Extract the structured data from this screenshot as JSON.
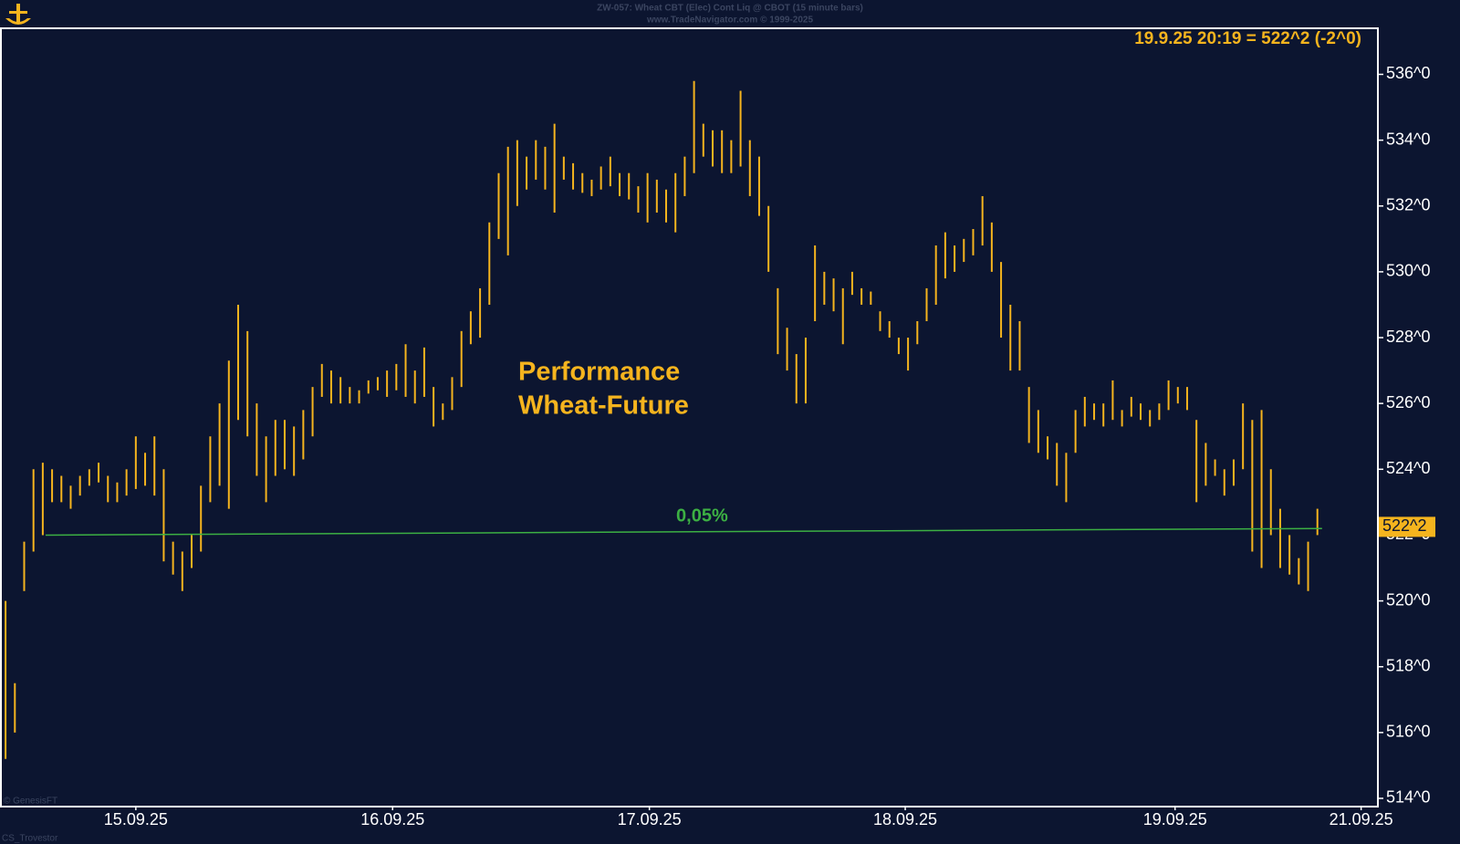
{
  "chart_data": {
    "type": "range-bar",
    "title": "ZW-057: Wheat CBT (Elec) Cont Liq @ CBOT (15 minute bars)",
    "subtitle": "www.TradeNavigator.com © 1999-2025",
    "info": "19.9.25 20:19 = 522^2 (-2^0)",
    "annotation": [
      "Performance",
      "Wheat-Future"
    ],
    "watermark": "© GenesisFT",
    "footer": "CS_Trovestor",
    "color": "#f5b41e",
    "high": [
      520.0,
      517.5,
      521.8,
      524.0,
      524.2,
      524.0,
      523.8,
      523.5,
      523.8,
      524.0,
      524.2,
      523.8,
      523.6,
      524.0,
      525.0,
      524.5,
      525.0,
      524.0,
      521.8,
      521.5,
      522.0,
      523.5,
      525.0,
      526.0,
      527.3,
      529.0,
      528.2,
      526.0,
      525.0,
      525.5,
      525.5,
      525.3,
      525.8,
      526.5,
      527.2,
      527.0,
      526.8,
      526.5,
      526.4,
      526.7,
      526.8,
      527.0,
      527.2,
      527.8,
      527.0,
      527.7,
      526.5,
      526.0,
      526.8,
      528.2,
      528.8,
      529.5,
      531.5,
      533.0,
      533.8,
      534.0,
      533.5,
      534.0,
      533.8,
      534.5,
      533.5,
      533.3,
      533.0,
      532.8,
      533.2,
      533.5,
      533.0,
      533.0,
      532.6,
      533.0,
      532.8,
      532.5,
      533.0,
      533.5,
      535.8,
      534.5,
      534.3,
      534.3,
      534.0,
      535.5,
      534.0,
      533.5,
      532.0,
      529.5,
      528.3,
      527.5,
      528.0,
      530.8,
      530.0,
      529.8,
      529.5,
      530.0,
      529.5,
      529.4,
      528.8,
      528.5,
      528.0,
      528.0,
      528.5,
      529.5,
      530.8,
      531.2,
      530.8,
      531.0,
      531.3,
      532.3,
      531.5,
      530.3,
      529.0,
      528.5,
      526.5,
      525.8,
      525.0,
      524.8,
      524.5,
      525.8,
      526.2,
      526.0,
      526.0,
      526.7,
      525.8,
      526.2,
      526.0,
      525.8,
      526.0,
      526.7,
      526.5,
      526.5,
      525.5,
      524.8,
      524.3,
      524.0,
      524.3,
      526.0,
      525.5,
      525.8,
      524.0,
      522.8,
      522.0,
      521.3,
      521.8,
      522.8
    ],
    "low": [
      515.2,
      516.0,
      520.3,
      521.5,
      522.0,
      523.0,
      523.0,
      522.8,
      523.2,
      523.5,
      523.6,
      523.0,
      523.0,
      523.2,
      523.4,
      523.5,
      523.2,
      521.2,
      520.8,
      520.3,
      521.0,
      521.5,
      523.0,
      523.5,
      522.8,
      525.5,
      525.0,
      523.8,
      523.0,
      523.8,
      524.0,
      523.8,
      524.3,
      525.0,
      526.2,
      526.0,
      526.0,
      526.0,
      526.0,
      526.3,
      526.4,
      526.2,
      526.4,
      526.2,
      526.0,
      526.2,
      525.3,
      525.5,
      525.8,
      526.5,
      527.8,
      528.0,
      529.0,
      531.0,
      530.5,
      532.0,
      532.5,
      532.8,
      532.5,
      531.8,
      532.8,
      532.5,
      532.4,
      532.3,
      532.5,
      532.6,
      532.3,
      532.2,
      531.8,
      531.5,
      531.8,
      531.5,
      531.2,
      532.3,
      533.0,
      533.5,
      533.2,
      533.0,
      533.0,
      533.2,
      532.3,
      531.7,
      530.0,
      527.5,
      527.0,
      526.0,
      526.0,
      528.5,
      529.0,
      528.8,
      527.8,
      529.3,
      529.0,
      529.0,
      528.2,
      528.0,
      527.5,
      527.0,
      527.8,
      528.5,
      529.0,
      529.8,
      530.0,
      530.3,
      530.5,
      530.8,
      530.0,
      528.0,
      527.0,
      527.0,
      524.8,
      524.5,
      524.3,
      523.5,
      523.0,
      524.5,
      525.3,
      525.5,
      525.3,
      525.5,
      525.3,
      525.6,
      525.5,
      525.3,
      525.5,
      525.8,
      526.0,
      525.8,
      523.0,
      523.5,
      523.8,
      523.2,
      523.5,
      524.0,
      521.5,
      521.0,
      522.0,
      521.0,
      520.8,
      520.5,
      520.3,
      522.0
    ],
    "reference_line": {
      "name": "0,05%",
      "color": "#3cb043",
      "x": [
        4.8,
        142
      ],
      "values": [
        522.0,
        522.2
      ]
    },
    "last_price": {
      "value": 522.25,
      "label": "522^2"
    },
    "xlim": [
      0,
      148
    ],
    "xticks": [
      {
        "value": 14.5,
        "label": "15.09.25"
      },
      {
        "value": 42.1,
        "label": "16.09.25"
      },
      {
        "value": 69.7,
        "label": "17.09.25"
      },
      {
        "value": 97.2,
        "label": "18.09.25"
      },
      {
        "value": 126.2,
        "label": "19.09.25"
      },
      {
        "value": 146.2,
        "label": "21.09.25"
      }
    ],
    "ylim": [
      513.75,
      537.4
    ],
    "yticks": [
      {
        "value": 514,
        "label": "514^0"
      },
      {
        "value": 516,
        "label": "516^0"
      },
      {
        "value": 518,
        "label": "518^0"
      },
      {
        "value": 520,
        "label": "520^0"
      },
      {
        "value": 522,
        "label": "522^0"
      },
      {
        "value": 524,
        "label": "524^0"
      },
      {
        "value": 526,
        "label": "526^0"
      },
      {
        "value": 528,
        "label": "528^0"
      },
      {
        "value": 530,
        "label": "530^0"
      },
      {
        "value": 532,
        "label": "532^0"
      },
      {
        "value": 534,
        "label": "534^0"
      },
      {
        "value": 536,
        "label": "536^0"
      }
    ]
  }
}
